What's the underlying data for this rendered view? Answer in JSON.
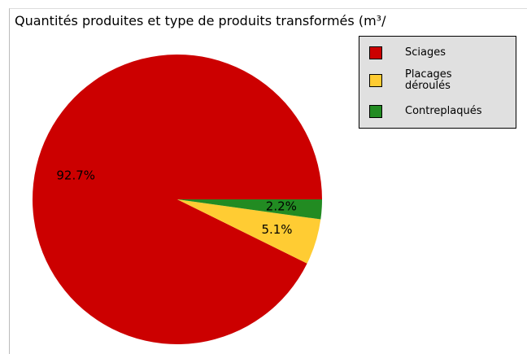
{
  "chart_data": {
    "type": "pie",
    "title": "Quantités produites et type de produits transformés (m³/",
    "categories": [
      "Sciages",
      "Placages déroulés",
      "Contreplaqués"
    ],
    "values": [
      92.7,
      5.1,
      2.2
    ],
    "value_labels": [
      "92.7%",
      "5.1%",
      "2.2%"
    ],
    "colors": [
      "#cc0000",
      "#ffcc33",
      "#228b22"
    ],
    "legend": "upper right"
  }
}
